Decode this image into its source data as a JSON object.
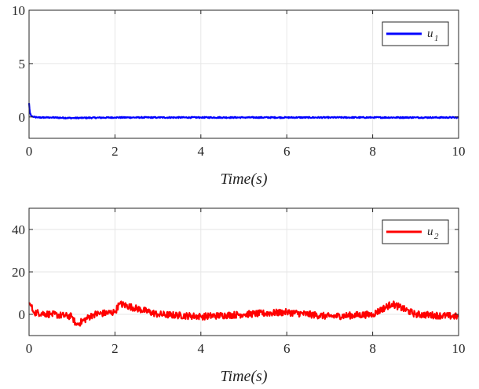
{
  "chart_data": [
    {
      "type": "line",
      "xlabel": "Time(s)",
      "ylabel": "",
      "xlim": [
        0,
        10
      ],
      "ylim": [
        -2,
        10
      ],
      "xticks": [
        0,
        2,
        4,
        6,
        8,
        10
      ],
      "yticks": [
        0,
        5,
        10
      ],
      "grid": true,
      "legend": "top-right",
      "series": [
        {
          "name": "u",
          "subscript": "1",
          "color": "#0000ff",
          "x": [
            0,
            0.01,
            0.02,
            0.05,
            0.1,
            0.2,
            0.5,
            1,
            2,
            3,
            4,
            5,
            6,
            7,
            8,
            9,
            10
          ],
          "values": [
            1.3,
            0.8,
            0.4,
            0.1,
            0.0,
            -0.05,
            -0.05,
            -0.1,
            -0.05,
            -0.05,
            -0.05,
            -0.05,
            -0.05,
            -0.05,
            -0.05,
            -0.05,
            -0.05
          ]
        }
      ]
    },
    {
      "type": "line",
      "xlabel": "Time(s)",
      "ylabel": "",
      "xlim": [
        0,
        10
      ],
      "ylim": [
        -10,
        50
      ],
      "xticks": [
        0,
        2,
        4,
        6,
        8,
        10
      ],
      "yticks": [
        0,
        20,
        40
      ],
      "grid": true,
      "legend": "top-right",
      "series": [
        {
          "name": "u",
          "subscript": "2",
          "color": "#ff0000",
          "x": [
            0,
            0.05,
            0.1,
            0.5,
            1,
            1.1,
            1.5,
            2,
            2.1,
            3,
            4,
            5,
            6,
            7,
            8,
            8.45,
            9,
            10
          ],
          "values": [
            5.5,
            4,
            1,
            0,
            -1,
            -5,
            0,
            1,
            5,
            0,
            -1,
            0,
            1,
            -1,
            0,
            5,
            0,
            -1
          ]
        }
      ]
    }
  ]
}
